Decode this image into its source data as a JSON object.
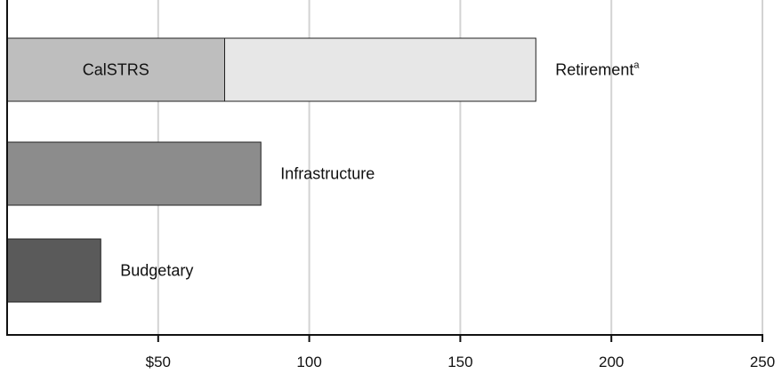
{
  "chart_data": {
    "type": "bar",
    "orientation": "horizontal",
    "stacked": true,
    "xlim": [
      0,
      250
    ],
    "x_ticks": [
      50,
      100,
      150,
      200,
      250
    ],
    "x_tick_labels": [
      "$50",
      "100",
      "150",
      "200",
      "250"
    ],
    "grid": "vertical",
    "bars": [
      {
        "label": "Retirement",
        "label_superscript": "a",
        "segments": [
          {
            "label": "CalSTRS",
            "value": 72,
            "color": "#bebebe"
          },
          {
            "label": "",
            "value": 103,
            "color": "#e7e7e7"
          }
        ],
        "total": 175
      },
      {
        "label": "Infrastructure",
        "label_superscript": "",
        "segments": [
          {
            "label": "",
            "value": 84,
            "color": "#8c8c8c"
          }
        ],
        "total": 84
      },
      {
        "label": "Budgetary",
        "label_superscript": "",
        "segments": [
          {
            "label": "",
            "value": 31,
            "color": "#5a5a5a"
          }
        ],
        "total": 31
      }
    ]
  }
}
